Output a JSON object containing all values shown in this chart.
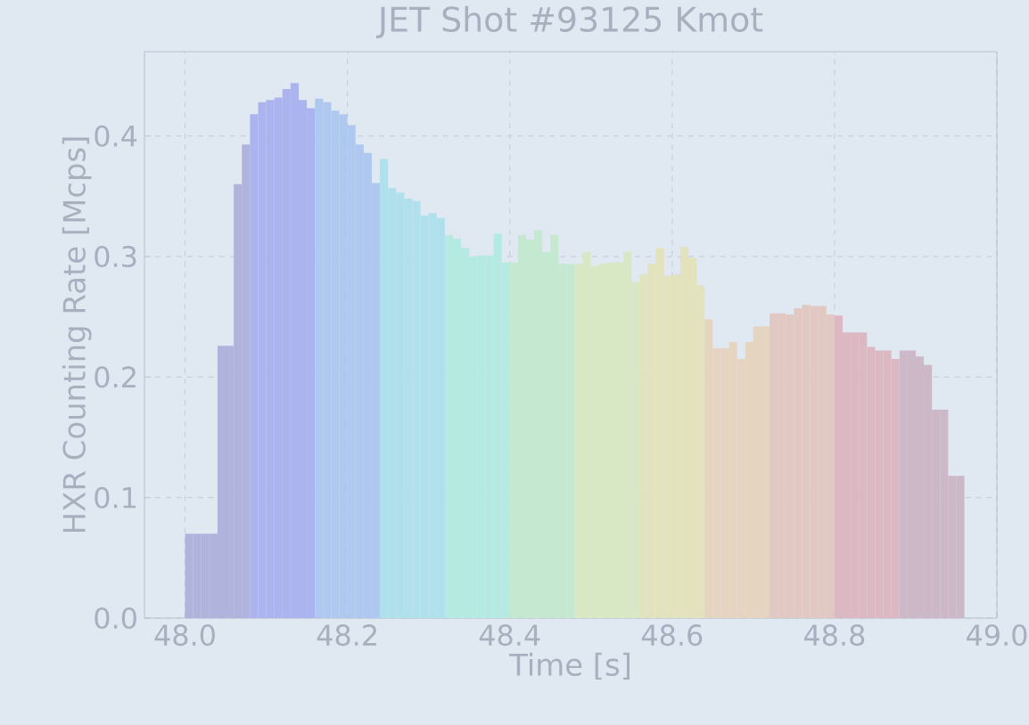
{
  "chart_data": {
    "type": "histogram",
    "title": "JET Shot #93125 Kmot",
    "xlabel": "Time [s]",
    "ylabel": "HXR Counting Rate [Mcps]",
    "bins": [
      48.0,
      48.01,
      48.02,
      48.03,
      48.04,
      48.05,
      48.06,
      48.07,
      48.08,
      48.09,
      48.1,
      48.11,
      48.12,
      48.13,
      48.14,
      48.15,
      48.16,
      48.17,
      48.18,
      48.19,
      48.2,
      48.21,
      48.22,
      48.23,
      48.24,
      48.25,
      48.26,
      48.27,
      48.28,
      48.29,
      48.3,
      48.31,
      48.32,
      48.33,
      48.34,
      48.35,
      48.36,
      48.37,
      48.38,
      48.39,
      48.4,
      48.41,
      48.42,
      48.43,
      48.44,
      48.45,
      48.46,
      48.47,
      48.48,
      48.49,
      48.5,
      48.51,
      48.52,
      48.53,
      48.54,
      48.55,
      48.56,
      48.57,
      48.58,
      48.59,
      48.6,
      48.61,
      48.62,
      48.63,
      48.64,
      48.65,
      48.66,
      48.67,
      48.68,
      48.69,
      48.7,
      48.71,
      48.72,
      48.73,
      48.74,
      48.75,
      48.76,
      48.77,
      48.78,
      48.79,
      48.8,
      48.81,
      48.82,
      48.83,
      48.84,
      48.85,
      48.86,
      48.87,
      48.88,
      48.89,
      48.9,
      48.91,
      48.92,
      48.93,
      48.94,
      48.95,
      48.96
    ],
    "values": [
      0.07,
      0.07,
      0.07,
      0.07,
      0.226,
      0.226,
      0.36,
      0.393,
      0.418,
      0.428,
      0.43,
      0.432,
      0.439,
      0.444,
      0.43,
      0.423,
      0.431,
      0.428,
      0.421,
      0.418,
      0.409,
      0.393,
      0.386,
      0.361,
      0.381,
      0.357,
      0.353,
      0.348,
      0.346,
      0.334,
      0.336,
      0.332,
      0.318,
      0.315,
      0.307,
      0.3,
      0.301,
      0.301,
      0.319,
      0.295,
      0.295,
      0.318,
      0.314,
      0.322,
      0.304,
      0.318,
      0.294,
      0.294,
      0.294,
      0.304,
      0.292,
      0.294,
      0.295,
      0.295,
      0.304,
      0.279,
      0.285,
      0.294,
      0.307,
      0.284,
      0.285,
      0.308,
      0.299,
      0.276,
      0.248,
      0.224,
      0.224,
      0.229,
      0.215,
      0.229,
      0.242,
      0.242,
      0.253,
      0.253,
      0.252,
      0.257,
      0.26,
      0.259,
      0.259,
      0.252,
      0.251,
      0.237,
      0.237,
      0.237,
      0.225,
      0.222,
      0.222,
      0.215,
      0.222,
      0.222,
      0.217,
      0.21,
      0.173,
      0.173,
      0.118,
      0.118
    ],
    "colors": [
      "#b0b4dc",
      "#b0b4dc",
      "#b0b4dc",
      "#b0b4dc",
      "#b0b4dc",
      "#b0b4dc",
      "#b0b4dc",
      "#b0b4dc",
      "#abb4ef",
      "#abb4ef",
      "#abb4ef",
      "#abb4ef",
      "#abb4ef",
      "#abb4ef",
      "#abb4ef",
      "#abb4ef",
      "#aec8f0",
      "#aec8f0",
      "#aec8f0",
      "#aec8f0",
      "#aec8f0",
      "#aec8f0",
      "#aec8f0",
      "#aec8f0",
      "#b0e0ec",
      "#b0e0ec",
      "#b0e0ec",
      "#b0e0ec",
      "#b0e0ec",
      "#b0e0ec",
      "#b0e0ec",
      "#b0e0ec",
      "#b4eae2",
      "#b4eae2",
      "#b4eae2",
      "#b4eae2",
      "#b4eae2",
      "#b4eae2",
      "#b4eae2",
      "#b4eae2",
      "#c4e8d0",
      "#c4e8d0",
      "#c4e8d0",
      "#c4e8d0",
      "#c4e8d0",
      "#c4e8d0",
      "#c4e8d0",
      "#c4e8d0",
      "#d8e8c4",
      "#d8e8c4",
      "#d8e8c4",
      "#d8e8c4",
      "#d8e8c4",
      "#d8e8c4",
      "#d8e8c4",
      "#d8e8c4",
      "#e2e2bc",
      "#e2e2bc",
      "#e2e2bc",
      "#e2e2bc",
      "#e2e2bc",
      "#e2e2bc",
      "#e2e2bc",
      "#e2e2bc",
      "#e4d4c0",
      "#e4d4c0",
      "#e4d4c0",
      "#e4d4c0",
      "#e4d4c0",
      "#e4d4c0",
      "#e4d4c0",
      "#e4d4c0",
      "#e2c8c2",
      "#e2c8c2",
      "#e2c8c2",
      "#e2c8c2",
      "#e2c8c2",
      "#e2c8c2",
      "#e2c8c2",
      "#e2c8c2",
      "#dcb8c2",
      "#dcb8c2",
      "#dcb8c2",
      "#dcb8c2",
      "#dcb8c2",
      "#dcb8c2",
      "#dcb8c2",
      "#dcb8c2",
      "#cdb8c8",
      "#cdb8c8",
      "#cdb8c8",
      "#cdb8c8",
      "#cdb8c8",
      "#cdb8c8",
      "#cdb8c8",
      "#cdb8c8"
    ],
    "xlim": [
      47.95,
      49.0
    ],
    "ylim": [
      0,
      0.47
    ],
    "xticks": [
      {
        "value": 48.0,
        "label": "48.0"
      },
      {
        "value": 48.2,
        "label": "48.2"
      },
      {
        "value": 48.4,
        "label": "48.4"
      },
      {
        "value": 48.6,
        "label": "48.6"
      },
      {
        "value": 48.8,
        "label": "48.8"
      },
      {
        "value": 49.0,
        "label": "49.0"
      }
    ],
    "yticks": [
      {
        "value": 0.0,
        "label": "0.0"
      },
      {
        "value": 0.1,
        "label": "0.1"
      },
      {
        "value": 0.2,
        "label": "0.2"
      },
      {
        "value": 0.3,
        "label": "0.3"
      },
      {
        "value": 0.4,
        "label": "0.4"
      }
    ],
    "grid": true
  }
}
